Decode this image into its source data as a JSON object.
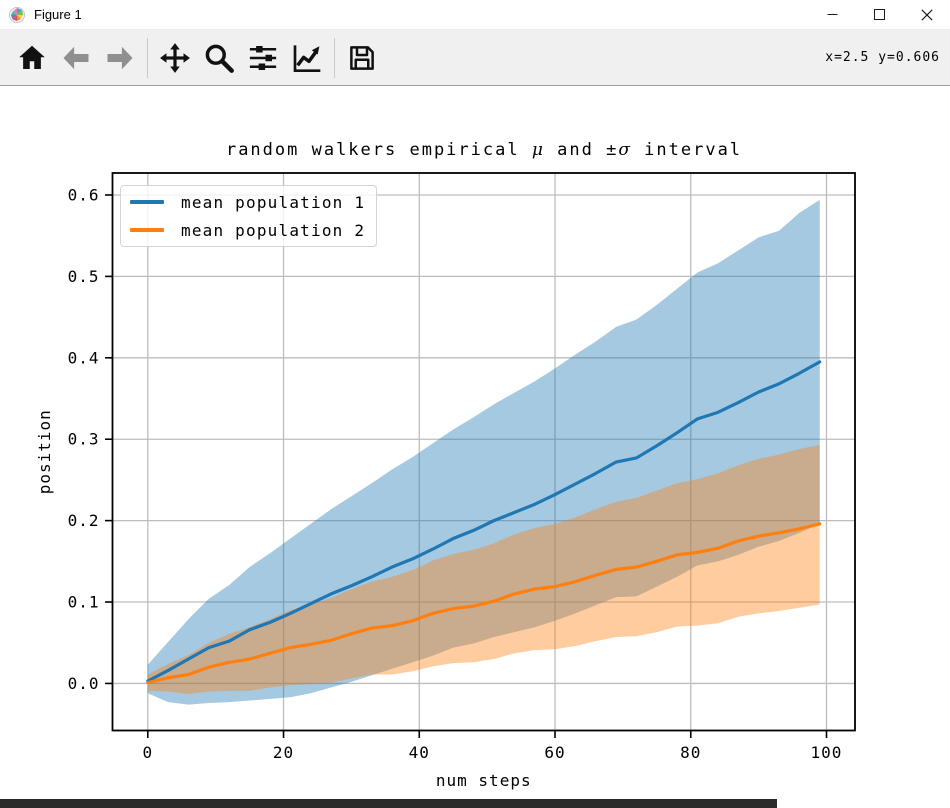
{
  "window": {
    "title": "Figure 1",
    "controls": [
      "minimize",
      "maximize",
      "close"
    ]
  },
  "toolbar": {
    "buttons": [
      {
        "name": "home",
        "enabled": true
      },
      {
        "name": "back",
        "enabled": false
      },
      {
        "name": "forward",
        "enabled": false
      },
      {
        "name": "pan",
        "enabled": true
      },
      {
        "name": "zoom-to-rect",
        "enabled": true
      },
      {
        "name": "configure-subplots",
        "enabled": true
      },
      {
        "name": "edit-parameters",
        "enabled": true
      },
      {
        "name": "save",
        "enabled": true
      }
    ],
    "cursor_readout": "x=2.5 y=0.606"
  },
  "figure": {
    "title_parts": {
      "prefix": "random walkers empirical ",
      "mu": "μ",
      "mid": " and ±",
      "sigma": "σ",
      "suffix": " interval"
    }
  },
  "legend": {
    "items": [
      {
        "label": "mean population 1",
        "color": "#1f77b4"
      },
      {
        "label": "mean population 2",
        "color": "#ff7f0e"
      }
    ]
  },
  "chart_data": {
    "type": "line",
    "title": "random walkers empirical μ and ±σ interval",
    "xlabel": "num steps",
    "ylabel": "position",
    "xlim": [
      -5.2,
      104.2
    ],
    "ylim": [
      -0.0578,
      0.627
    ],
    "xticks": [
      "0",
      "20",
      "40",
      "60",
      "80",
      "100"
    ],
    "yticks": [
      "0.0",
      "0.1",
      "0.2",
      "0.3",
      "0.4",
      "0.5",
      "0.6"
    ],
    "grid": true,
    "grid_color": "#bdbdbd",
    "legend_position": "upper left",
    "x": [
      0,
      3,
      6,
      9,
      12,
      15,
      18,
      21,
      24,
      27,
      30,
      33,
      36,
      39,
      42,
      45,
      48,
      51,
      54,
      57,
      60,
      63,
      66,
      69,
      72,
      75,
      78,
      81,
      84,
      87,
      90,
      93,
      96,
      99
    ],
    "series": [
      {
        "name": "mean population 1",
        "color": "#1f77b4",
        "band_alpha": 0.4,
        "mean": [
          0.003,
          0.016,
          0.03,
          0.044,
          0.052,
          0.066,
          0.075,
          0.086,
          0.098,
          0.11,
          0.12,
          0.131,
          0.143,
          0.153,
          0.165,
          0.178,
          0.188,
          0.2,
          0.21,
          0.22,
          0.232,
          0.245,
          0.258,
          0.272,
          0.277,
          0.292,
          0.308,
          0.325,
          0.333,
          0.345,
          0.358,
          0.368,
          0.381,
          0.395
        ],
        "band_low": [
          -0.012,
          -0.023,
          -0.026,
          -0.024,
          -0.023,
          -0.021,
          -0.019,
          -0.017,
          -0.012,
          -0.005,
          0.002,
          0.01,
          0.018,
          0.026,
          0.034,
          0.044,
          0.049,
          0.057,
          0.063,
          0.069,
          0.077,
          0.086,
          0.096,
          0.106,
          0.107,
          0.119,
          0.131,
          0.145,
          0.15,
          0.158,
          0.168,
          0.175,
          0.185,
          0.196
        ],
        "band_high": [
          0.023,
          0.051,
          0.079,
          0.104,
          0.121,
          0.143,
          0.16,
          0.178,
          0.196,
          0.214,
          0.23,
          0.246,
          0.263,
          0.278,
          0.295,
          0.312,
          0.327,
          0.343,
          0.357,
          0.371,
          0.387,
          0.404,
          0.42,
          0.438,
          0.447,
          0.465,
          0.485,
          0.505,
          0.516,
          0.532,
          0.548,
          0.556,
          0.578,
          0.594
        ]
      },
      {
        "name": "mean population 2",
        "color": "#ff7f0e",
        "band_alpha": 0.4,
        "mean": [
          0.001,
          0.007,
          0.011,
          0.02,
          0.026,
          0.03,
          0.037,
          0.044,
          0.048,
          0.053,
          0.061,
          0.068,
          0.071,
          0.077,
          0.086,
          0.092,
          0.095,
          0.101,
          0.11,
          0.116,
          0.119,
          0.125,
          0.133,
          0.14,
          0.143,
          0.15,
          0.158,
          0.161,
          0.166,
          0.175,
          0.181,
          0.185,
          0.19,
          0.196
        ],
        "band_low": [
          -0.009,
          -0.01,
          -0.013,
          -0.01,
          -0.009,
          -0.009,
          -0.005,
          -0.002,
          -0.001,
          0.001,
          0.006,
          0.011,
          0.011,
          0.015,
          0.021,
          0.025,
          0.026,
          0.03,
          0.037,
          0.041,
          0.042,
          0.046,
          0.052,
          0.057,
          0.058,
          0.063,
          0.07,
          0.071,
          0.074,
          0.082,
          0.086,
          0.089,
          0.093,
          0.097
        ],
        "band_high": [
          0.011,
          0.024,
          0.035,
          0.05,
          0.061,
          0.069,
          0.079,
          0.09,
          0.097,
          0.105,
          0.116,
          0.125,
          0.131,
          0.139,
          0.151,
          0.159,
          0.164,
          0.172,
          0.183,
          0.191,
          0.196,
          0.204,
          0.214,
          0.223,
          0.228,
          0.237,
          0.246,
          0.251,
          0.258,
          0.268,
          0.276,
          0.281,
          0.288,
          0.293
        ]
      }
    ]
  }
}
